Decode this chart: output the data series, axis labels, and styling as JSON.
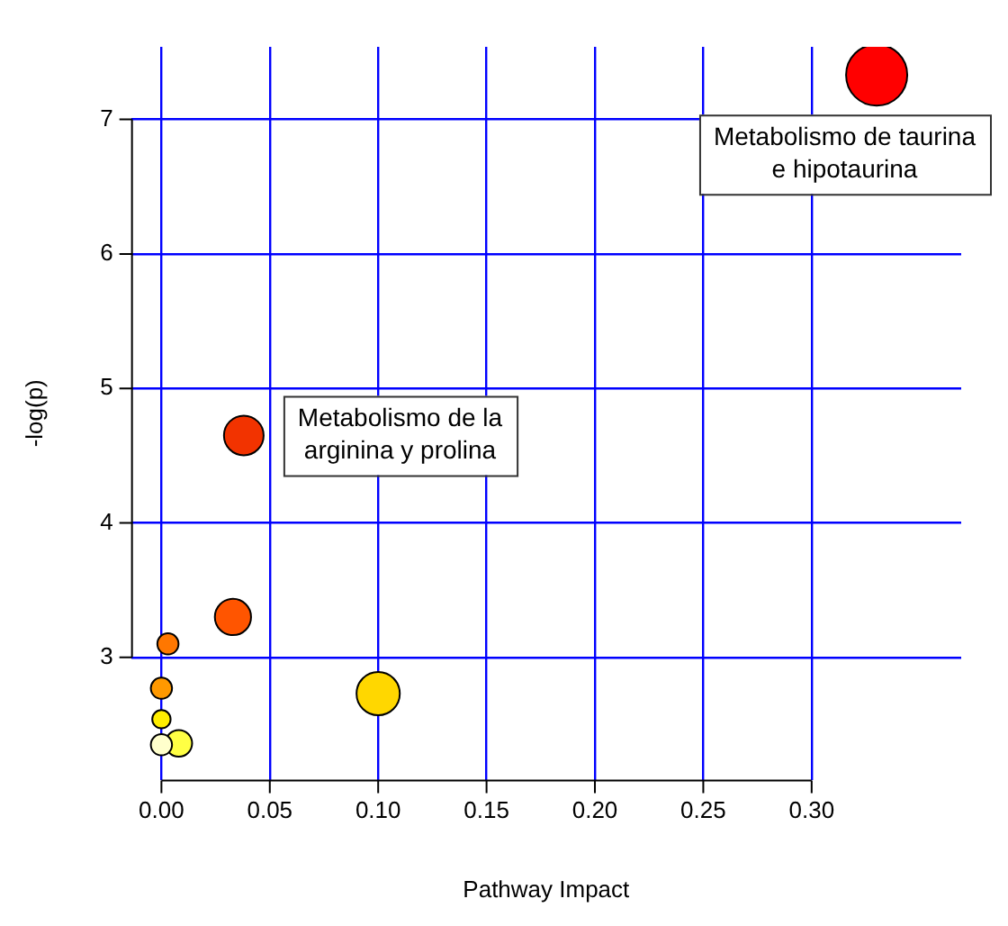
{
  "chart_data": {
    "type": "bubble",
    "xlabel": "Pathway Impact",
    "ylabel": "-log(p)",
    "xlim": [
      -0.014,
      0.369
    ],
    "ylim": [
      2.09,
      7.54
    ],
    "xticks": [
      {
        "value": 0,
        "label": "0.00"
      },
      {
        "value": 0.05,
        "label": "0.05"
      },
      {
        "value": 0.1,
        "label": "0.10"
      },
      {
        "value": 0.15,
        "label": "0.15"
      },
      {
        "value": 0.2,
        "label": "0.20"
      },
      {
        "value": 0.25,
        "label": "0.25"
      },
      {
        "value": 0.3,
        "label": "0.30"
      }
    ],
    "yticks": [
      3,
      4,
      5,
      6,
      7
    ],
    "grid": true,
    "legend": false,
    "series": [
      {
        "x": [
          0.33,
          0.038,
          0.033,
          0.003,
          0,
          0,
          0.008,
          0,
          0.1
        ],
        "values": [
          7.33,
          4.65,
          3.3,
          3.1,
          2.77,
          2.54,
          2.36,
          2.35,
          2.73
        ],
        "sizes": [
          1,
          0.42,
          0.35,
          0.12,
          0.12,
          0.09,
          0.19,
          0.12,
          0.5
        ],
        "colors": [
          "#ff0000",
          "#f23300",
          "#ff5500",
          "#ff7700",
          "#ff9900",
          "#ffee00",
          "#ffff44",
          "#ffffcc",
          "#ffd700"
        ]
      }
    ],
    "annotations": [
      {
        "text": "Metabolismo de taurina e hipotaurina",
        "x": 0.33,
        "y": 7.33
      },
      {
        "text": "Metabolismo de la arginina y prolina",
        "x": 0.038,
        "y": 4.65
      }
    ]
  }
}
